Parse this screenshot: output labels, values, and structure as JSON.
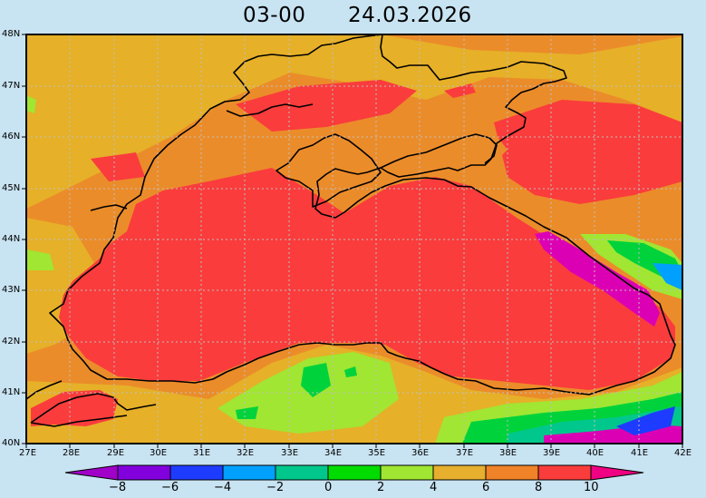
{
  "title": {
    "time": "03-00",
    "date": "24.03.2026"
  },
  "map": {
    "region": "Black Sea",
    "lat_labels": [
      "48N",
      "47N",
      "46N",
      "45N",
      "44N",
      "43N",
      "42N",
      "41N",
      "40N"
    ],
    "lon_labels": [
      "27E",
      "28E",
      "29E",
      "30E",
      "31E",
      "32E",
      "33E",
      "34E",
      "35E",
      "36E",
      "37E",
      "38E",
      "39E",
      "40E",
      "41E",
      "42E"
    ],
    "field_colors": {
      "sea_main": "#fa3c3c",
      "land_warm": "#eb8c2a",
      "land_mild": "#e6b028",
      "cold_band": "#a0e632",
      "green": "#00d23c",
      "teal": "#00c88c",
      "blue": "#1e3cff",
      "sky": "#00a0ff",
      "magenta": "#dc00b4",
      "coast": "#000000",
      "grid": "#bfbfbf"
    }
  },
  "colorbar": {
    "labels": [
      "-8",
      "-6",
      "-4",
      "-2",
      "0",
      "2",
      "4",
      "6",
      "8",
      "10"
    ],
    "colors": [
      "#a000c8",
      "#8200dc",
      "#1e3cff",
      "#00a0ff",
      "#00c88c",
      "#00dc00",
      "#a0e632",
      "#e6af2d",
      "#f08228",
      "#fa3c3c",
      "#f00082"
    ]
  }
}
